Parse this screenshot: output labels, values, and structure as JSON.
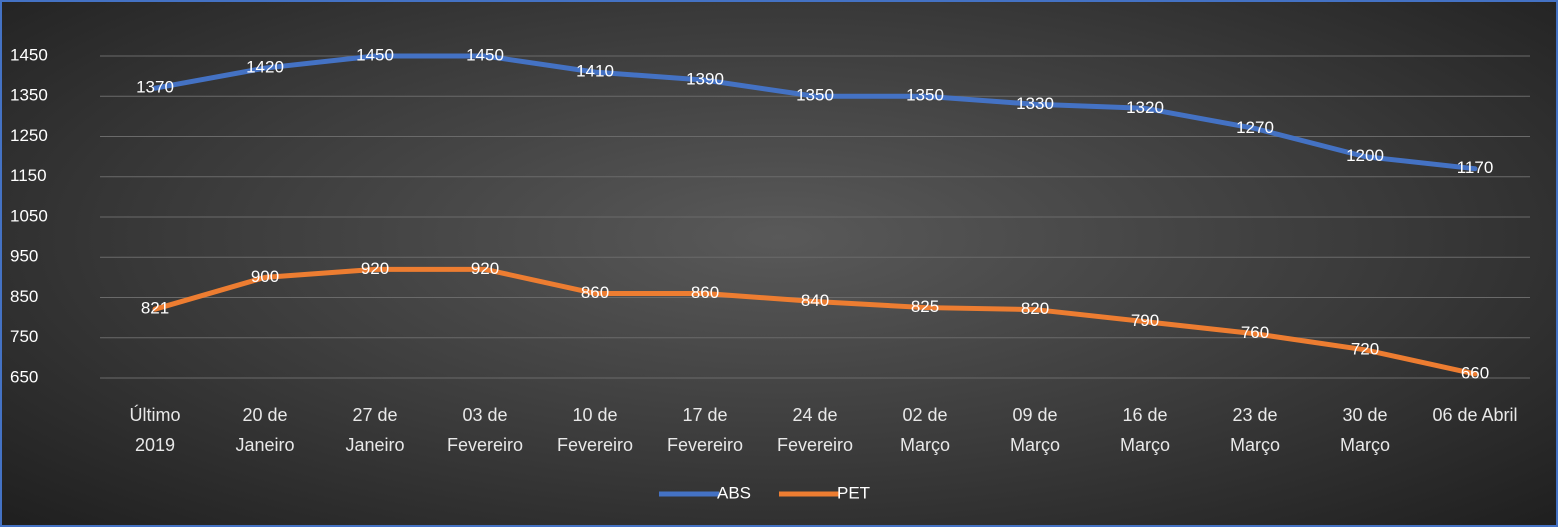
{
  "chart_data": {
    "type": "line",
    "categories": [
      "Último\n2019",
      "20 de\nJaneiro",
      "27 de\nJaneiro",
      "03 de\nFevereiro",
      "10 de\nFevereiro",
      "17 de\nFevereiro",
      "24 de\nFevereiro",
      "02 de\nMarço",
      "09 de\nMarço",
      "16 de\nMarço",
      "23 de\nMarço",
      "30 de\nMarço",
      "06 de Abril"
    ],
    "series": [
      {
        "name": "ABS",
        "color": "#4472c4",
        "values": [
          1370,
          1420,
          1450,
          1450,
          1410,
          1390,
          1350,
          1350,
          1330,
          1320,
          1270,
          1200,
          1170
        ]
      },
      {
        "name": "PET",
        "color": "#ed7d31",
        "values": [
          821,
          900,
          920,
          920,
          860,
          860,
          840,
          825,
          820,
          790,
          760,
          720,
          660
        ]
      }
    ],
    "ylim": [
      650,
      1450
    ],
    "yticks": [
      650,
      750,
      850,
      950,
      1050,
      1150,
      1250,
      1350,
      1450
    ],
    "grid": true,
    "legend": "bottom"
  }
}
